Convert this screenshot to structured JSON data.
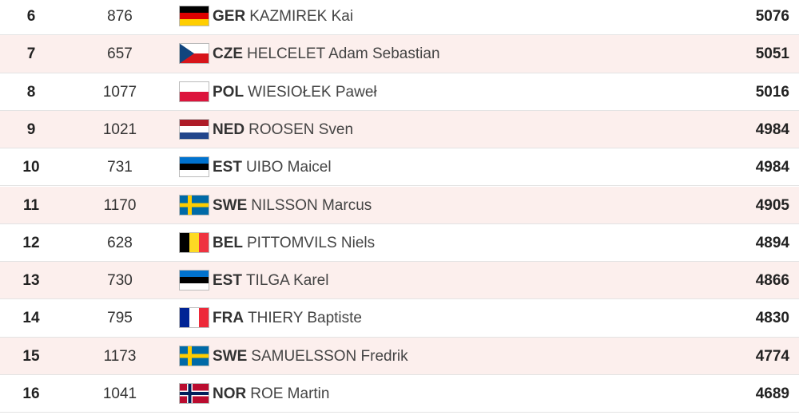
{
  "table": {
    "rows": [
      [
        6,
        876,
        "GER",
        "KAZMIREK Kai",
        5076
      ],
      [
        7,
        657,
        "CZE",
        "HELCELET Adam Sebastian",
        5051
      ],
      [
        8,
        1077,
        "POL",
        "WIESIOŁEK Paweł",
        5016
      ],
      [
        9,
        1021,
        "NED",
        "ROOSEN Sven",
        4984
      ],
      [
        10,
        731,
        "EST",
        "UIBO Maicel",
        4984
      ],
      [
        11,
        1170,
        "SWE",
        "NILSSON Marcus",
        4905
      ],
      [
        12,
        628,
        "BEL",
        "PITTOMVILS Niels",
        4894
      ],
      [
        13,
        730,
        "EST",
        "TILGA Karel",
        4866
      ],
      [
        14,
        795,
        "FRA",
        "THIERY Baptiste",
        4830
      ],
      [
        15,
        1173,
        "SWE",
        "SAMUELSSON Fredrik",
        4774
      ],
      [
        16,
        1041,
        "NOR",
        "ROE Martin",
        4689
      ]
    ]
  }
}
